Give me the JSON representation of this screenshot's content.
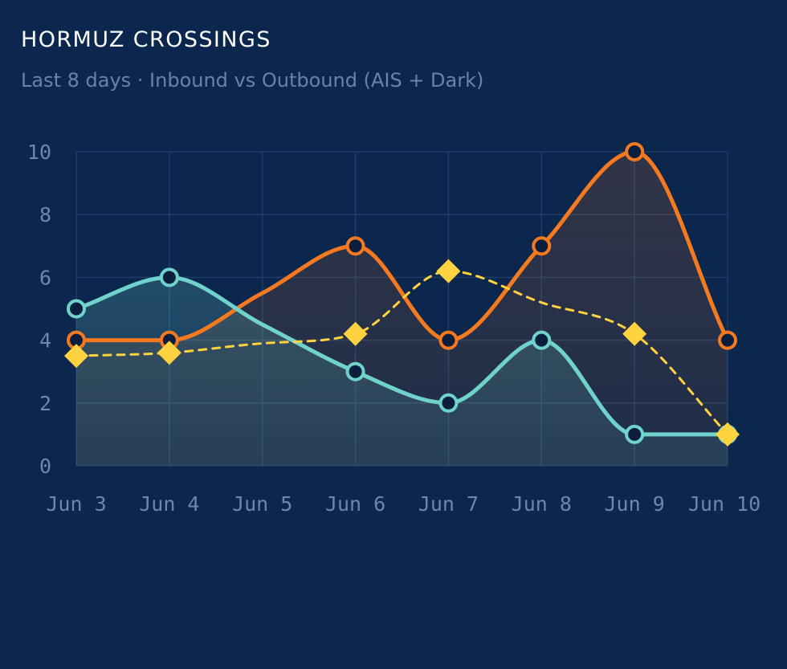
{
  "header": {
    "title": "HORMUZ CROSSINGS",
    "subtitle": "Last 8 days · Inbound vs Outbound (AIS + Dark)"
  },
  "colors": {
    "background": "#0c274d",
    "grid": "#1f3d66",
    "teal": "#6fd3cc",
    "orange": "#f57a1f",
    "yellow": "#ffd23f",
    "marker_fill": "#0b1e3d",
    "tick_label": "#6f86a8"
  },
  "chart_data": {
    "type": "line",
    "x": [
      "Jun 3",
      "Jun 4",
      "Jun 5",
      "Jun 6",
      "Jun 7",
      "Jun 8",
      "Jun 9",
      "Jun 10"
    ],
    "ylim": [
      0,
      10
    ],
    "yticks": [
      0,
      2,
      4,
      6,
      8,
      10
    ],
    "grid": true,
    "series": [
      {
        "key": "teal",
        "style": "solid-area",
        "marker": "circle",
        "values": [
          5,
          6,
          null,
          3,
          2,
          4,
          1,
          1
        ]
      },
      {
        "key": "orange",
        "style": "solid-area",
        "marker": "circle",
        "values": [
          4,
          4,
          null,
          7,
          4,
          7,
          10,
          4
        ]
      },
      {
        "key": "yellow",
        "style": "dashed",
        "marker": "diamond",
        "values": [
          3.5,
          3.6,
          null,
          4.2,
          6.2,
          null,
          4.2,
          1
        ]
      }
    ]
  }
}
